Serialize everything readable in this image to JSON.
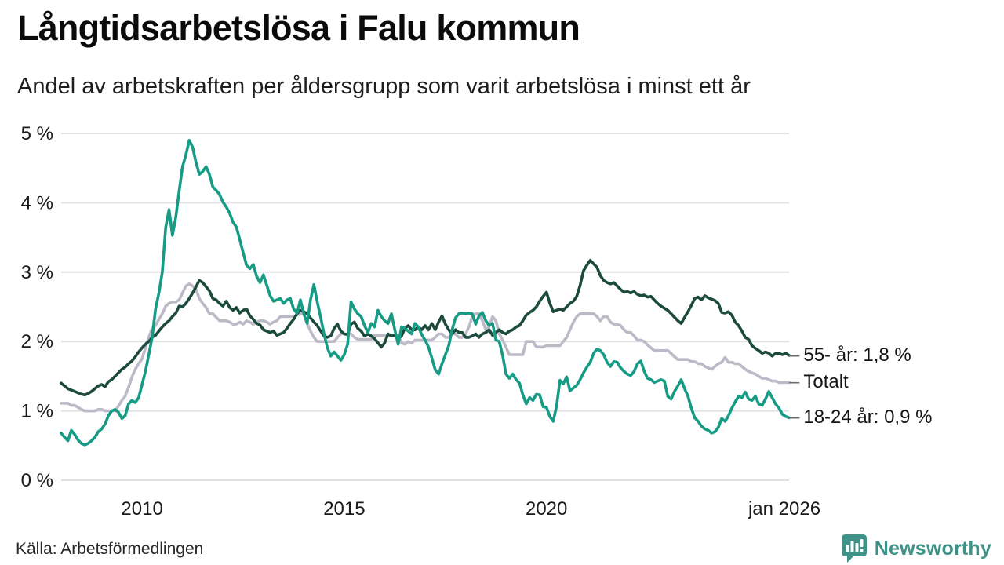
{
  "header": {
    "title": "Långtidsarbetslösa i Falu kommun",
    "subtitle": "Andel av arbetskraften per åldersgrupp som varit arbetslösa i minst ett år"
  },
  "footer": {
    "source": "Källa: Arbetsförmedlingen",
    "brand": "Newsworthy",
    "brand_color": "#3e9287"
  },
  "colors": {
    "grid": "#e1e1e4",
    "axis_text": "#1a1a1a",
    "end_label_text": "#141414",
    "end_label_dash": "#6b6b70"
  },
  "chart_data": {
    "type": "line",
    "title": "Långtidsarbetslösa i Falu kommun",
    "subtitle": "Andel av arbetskraften per åldersgrupp som varit arbetslösa i minst ett år",
    "x_start": "2008-01",
    "x_step_months": 1,
    "x_ticks": [
      {
        "label": "2010",
        "idx": 24
      },
      {
        "label": "2015",
        "idx": 84
      },
      {
        "label": "2020",
        "idx": 144
      },
      {
        "label": "jan 2026",
        "idx": 216,
        "dx": -6
      }
    ],
    "ylim": [
      0,
      5
    ],
    "y_ticks": [
      "0 %",
      "1 %",
      "2 %",
      "3 %",
      "4 %",
      "5 %"
    ],
    "grid": true,
    "legend_position": "end-of-line",
    "series": [
      {
        "key": "totalt",
        "name": "Totalt",
        "end_label": "Totalt",
        "color": "#bdbac7",
        "values": [
          1.11,
          1.11,
          1.11,
          1.08,
          1.08,
          1.05,
          1.02,
          1.0,
          1.0,
          1.0,
          1.0,
          1.02,
          1.02,
          1.0,
          1.0,
          1.0,
          1.0,
          1.07,
          1.15,
          1.21,
          1.34,
          1.49,
          1.6,
          1.68,
          1.75,
          1.91,
          2.06,
          2.19,
          2.23,
          2.32,
          2.4,
          2.51,
          2.55,
          2.57,
          2.57,
          2.6,
          2.7,
          2.8,
          2.83,
          2.8,
          2.75,
          2.62,
          2.55,
          2.49,
          2.4,
          2.4,
          2.35,
          2.3,
          2.3,
          2.3,
          2.28,
          2.25,
          2.25,
          2.28,
          2.25,
          2.3,
          2.28,
          2.25,
          2.28,
          2.3,
          2.3,
          2.28,
          2.25,
          2.28,
          2.3,
          2.36,
          2.36,
          2.36,
          2.36,
          2.36,
          2.38,
          2.4,
          2.4,
          2.26,
          2.15,
          2.06,
          2.0,
          2.0,
          2.0,
          2.0,
          2.0,
          2.0,
          2.06,
          2.11,
          2.11,
          2.11,
          2.11,
          2.06,
          2.03,
          2.03,
          2.03,
          2.03,
          2.03,
          2.09,
          2.09,
          2.09,
          2.09,
          2.09,
          2.09,
          2.09,
          2.09,
          1.98,
          1.96,
          2.0,
          1.98,
          2.02,
          2.02,
          2.02,
          2.02,
          2.02,
          2.02,
          2.06,
          2.11,
          2.11,
          2.06,
          2.06,
          2.11,
          2.11,
          2.06,
          2.06,
          2.11,
          2.21,
          2.36,
          2.4,
          2.4,
          2.3,
          2.17,
          2.21,
          2.36,
          2.3,
          2.11,
          2.02,
          1.92,
          1.81,
          1.81,
          1.81,
          1.81,
          1.81,
          2.0,
          2.0,
          2.0,
          1.92,
          1.92,
          1.92,
          1.94,
          1.94,
          1.94,
          1.94,
          1.94,
          2.0,
          2.06,
          2.17,
          2.28,
          2.36,
          2.4,
          2.4,
          2.4,
          2.4,
          2.4,
          2.36,
          2.3,
          2.36,
          2.36,
          2.28,
          2.25,
          2.25,
          2.23,
          2.17,
          2.13,
          2.13,
          2.08,
          2.02,
          2.02,
          2.0,
          1.95,
          1.91,
          1.87,
          1.87,
          1.87,
          1.87,
          1.87,
          1.83,
          1.78,
          1.74,
          1.74,
          1.74,
          1.74,
          1.71,
          1.71,
          1.68,
          1.68,
          1.64,
          1.62,
          1.6,
          1.64,
          1.68,
          1.7,
          1.77,
          1.7,
          1.7,
          1.68,
          1.68,
          1.64,
          1.6,
          1.57,
          1.55,
          1.53,
          1.5,
          1.47,
          1.47,
          1.45,
          1.43,
          1.43,
          1.41,
          1.41,
          1.41,
          1.41
        ]
      },
      {
        "key": "55-ar",
        "name": "55- år",
        "end_label": "55- år: 1,8 %",
        "color": "#1c4a3d",
        "values": [
          1.4,
          1.36,
          1.32,
          1.3,
          1.28,
          1.26,
          1.24,
          1.23,
          1.25,
          1.28,
          1.32,
          1.36,
          1.38,
          1.35,
          1.42,
          1.45,
          1.5,
          1.55,
          1.6,
          1.63,
          1.68,
          1.72,
          1.78,
          1.85,
          1.91,
          1.96,
          2.0,
          2.06,
          2.09,
          2.15,
          2.21,
          2.26,
          2.3,
          2.36,
          2.41,
          2.51,
          2.5,
          2.55,
          2.62,
          2.7,
          2.79,
          2.88,
          2.85,
          2.79,
          2.73,
          2.62,
          2.6,
          2.55,
          2.51,
          2.58,
          2.49,
          2.45,
          2.49,
          2.41,
          2.45,
          2.47,
          2.37,
          2.32,
          2.26,
          2.24,
          2.17,
          2.15,
          2.13,
          2.15,
          2.09,
          2.11,
          2.13,
          2.19,
          2.26,
          2.32,
          2.4,
          2.45,
          2.43,
          2.4,
          2.34,
          2.28,
          2.23,
          2.15,
          2.08,
          2.06,
          2.08,
          2.19,
          2.25,
          2.15,
          2.11,
          2.1,
          2.25,
          2.28,
          2.19,
          2.15,
          2.08,
          2.11,
          2.08,
          2.04,
          1.98,
          1.92,
          1.98,
          2.11,
          2.08,
          2.09,
          2.04,
          2.08,
          2.19,
          2.23,
          2.17,
          2.17,
          2.21,
          2.17,
          2.23,
          2.17,
          2.26,
          2.17,
          2.28,
          2.37,
          2.25,
          2.17,
          2.11,
          2.17,
          2.13,
          2.13,
          2.06,
          2.06,
          2.08,
          2.11,
          2.06,
          2.11,
          2.13,
          2.17,
          2.09,
          2.13,
          2.17,
          2.13,
          2.11,
          2.15,
          2.17,
          2.21,
          2.23,
          2.3,
          2.38,
          2.42,
          2.45,
          2.5,
          2.58,
          2.65,
          2.71,
          2.55,
          2.43,
          2.45,
          2.47,
          2.45,
          2.5,
          2.55,
          2.58,
          2.65,
          2.81,
          3.02,
          3.1,
          3.17,
          3.12,
          3.07,
          2.95,
          2.88,
          2.85,
          2.83,
          2.85,
          2.8,
          2.75,
          2.71,
          2.72,
          2.7,
          2.72,
          2.68,
          2.66,
          2.67,
          2.64,
          2.65,
          2.6,
          2.55,
          2.51,
          2.48,
          2.45,
          2.4,
          2.35,
          2.3,
          2.26,
          2.35,
          2.43,
          2.52,
          2.62,
          2.64,
          2.6,
          2.66,
          2.63,
          2.61,
          2.59,
          2.55,
          2.42,
          2.41,
          2.43,
          2.38,
          2.28,
          2.23,
          2.15,
          2.06,
          2.03,
          1.94,
          1.9,
          1.87,
          1.83,
          1.85,
          1.83,
          1.79,
          1.83,
          1.83,
          1.81,
          1.83,
          1.8
        ]
      },
      {
        "key": "18-24-ar",
        "name": "18-24 år",
        "end_label": "18-24 år: 0,9 %",
        "color": "#169b85",
        "values": [
          0.68,
          0.62,
          0.57,
          0.72,
          0.66,
          0.58,
          0.53,
          0.51,
          0.53,
          0.57,
          0.62,
          0.7,
          0.74,
          0.81,
          0.93,
          1.0,
          1.02,
          0.98,
          0.89,
          0.93,
          1.1,
          1.15,
          1.12,
          1.19,
          1.38,
          1.57,
          1.81,
          2.06,
          2.47,
          2.7,
          3.0,
          3.64,
          3.9,
          3.53,
          3.79,
          4.17,
          4.52,
          4.69,
          4.9,
          4.8,
          4.58,
          4.41,
          4.45,
          4.52,
          4.41,
          4.23,
          4.18,
          4.12,
          4.01,
          3.94,
          3.85,
          3.72,
          3.65,
          3.47,
          3.28,
          3.1,
          3.05,
          3.11,
          2.94,
          2.85,
          2.96,
          2.81,
          2.66,
          2.58,
          2.6,
          2.62,
          2.55,
          2.6,
          2.62,
          2.47,
          2.41,
          2.6,
          2.4,
          2.26,
          2.6,
          2.82,
          2.57,
          2.35,
          2.11,
          1.91,
          1.79,
          1.85,
          1.79,
          1.73,
          1.81,
          1.96,
          2.57,
          2.47,
          2.4,
          2.36,
          2.23,
          2.13,
          2.26,
          2.21,
          2.45,
          2.36,
          2.3,
          2.26,
          2.4,
          2.17,
          1.96,
          2.21,
          2.19,
          2.15,
          2.11,
          2.26,
          2.21,
          2.1,
          2.02,
          1.92,
          1.76,
          1.59,
          1.53,
          1.68,
          1.81,
          1.94,
          2.17,
          2.34,
          2.4,
          2.41,
          2.4,
          2.41,
          2.4,
          2.25,
          2.37,
          2.42,
          2.3,
          2.23,
          2.26,
          2.02,
          2.0,
          1.8,
          1.53,
          1.47,
          1.53,
          1.45,
          1.4,
          1.23,
          1.1,
          1.19,
          1.15,
          1.24,
          1.23,
          1.06,
          1.05,
          0.92,
          0.85,
          1.07,
          1.44,
          1.39,
          1.49,
          1.29,
          1.33,
          1.37,
          1.45,
          1.55,
          1.63,
          1.7,
          1.83,
          1.89,
          1.87,
          1.81,
          1.7,
          1.64,
          1.71,
          1.7,
          1.62,
          1.57,
          1.53,
          1.51,
          1.57,
          1.68,
          1.72,
          1.57,
          1.47,
          1.45,
          1.41,
          1.43,
          1.45,
          1.43,
          1.21,
          1.17,
          1.28,
          1.36,
          1.45,
          1.32,
          1.21,
          1.04,
          0.9,
          0.85,
          0.78,
          0.74,
          0.72,
          0.68,
          0.7,
          0.76,
          0.89,
          0.85,
          0.93,
          1.04,
          1.13,
          1.21,
          1.19,
          1.27,
          1.17,
          1.15,
          1.21,
          1.1,
          1.08,
          1.17,
          1.28,
          1.19,
          1.1,
          1.04,
          0.95,
          0.92,
          0.9
        ]
      }
    ]
  }
}
